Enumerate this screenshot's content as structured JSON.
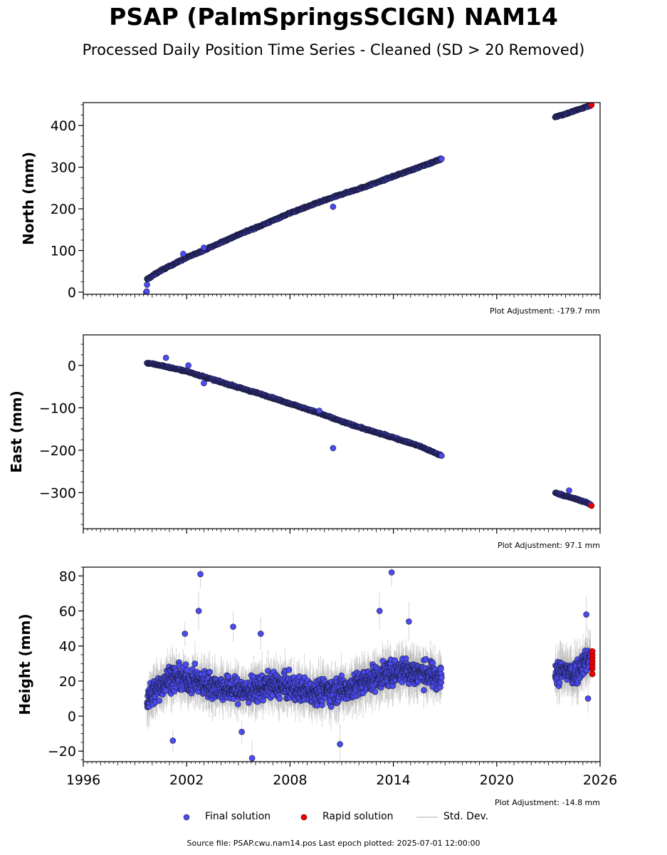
{
  "title": "PSAP (PalmSpringsSCIGN) NAM14",
  "subtitle": "Processed Daily Position Time Series - Cleaned (SD > 20 Removed)",
  "footer": "Source file: PSAP.cwu.nam14.pos  Last epoch plotted: 2025-07-01 12:00:00",
  "legend": {
    "final": "Final solution",
    "rapid": "Rapid solution",
    "std": "Std. Dev."
  },
  "colors": {
    "final": "#4b4bf0",
    "rapid": "#ee0000",
    "std": "#b8b8b8",
    "edge": "#1a1a3a"
  },
  "chart_data": [
    {
      "type": "scatter",
      "ylabel": "North (mm)",
      "adjustment": "Plot Adjustment: -179.7 mm",
      "xlim": [
        1996,
        2026
      ],
      "ylim": [
        -5,
        455
      ],
      "yticks": [
        0,
        100,
        200,
        300,
        400
      ],
      "xticks": [
        1996,
        2002,
        2008,
        2014,
        2020,
        2026
      ],
      "show_xtick_labels": false,
      "series": [
        {
          "name": "Final solution",
          "segments": [
            {
              "x": [
                1999.7,
                2000.5,
                2002.0,
                2003.5,
                2005.0,
                2006.5,
                2008.0,
                2009.5,
                2011.0,
                2012.5,
                2014.0,
                2015.5,
                2016.8
              ],
              "y": [
                31,
                52,
                83,
                110,
                138,
                163,
                190,
                213,
                235,
                255,
                278,
                300,
                320
              ]
            },
            {
              "x": [
                2023.4,
                2024.0,
                2024.5,
                2025.0,
                2025.45
              ],
              "y": [
                421,
                428,
                435,
                442,
                449
              ]
            }
          ],
          "outliers": [
            [
              1999.65,
              0
            ],
            [
              1999.68,
              2
            ],
            [
              1999.7,
              18
            ],
            [
              2010.5,
              205
            ],
            [
              2003.0,
              107
            ],
            [
              2001.8,
              92
            ]
          ]
        },
        {
          "name": "Rapid solution",
          "x": [
            2025.5
          ],
          "y": [
            449
          ]
        }
      ]
    },
    {
      "type": "scatter",
      "ylabel": "East (mm)",
      "adjustment": "Plot Adjustment: 97.1 mm",
      "xlim": [
        1996,
        2026
      ],
      "ylim": [
        -385,
        72
      ],
      "yticks": [
        0,
        -100,
        -200,
        -300
      ],
      "ytick_labels": [
        "0",
        "−100",
        "−200",
        "−300"
      ],
      "xticks": [
        1996,
        2002,
        2008,
        2014,
        2020,
        2026
      ],
      "show_xtick_labels": false,
      "series": [
        {
          "name": "Final solution",
          "segments": [
            {
              "x": [
                1999.7,
                2000.5,
                2002.0,
                2003.5,
                2005.0,
                2006.5,
                2008.0,
                2009.5,
                2011.0,
                2012.5,
                2014.0,
                2015.5,
                2016.8
              ],
              "y": [
                6,
                0,
                -14,
                -33,
                -52,
                -70,
                -90,
                -110,
                -132,
                -152,
                -170,
                -190,
                -213
              ]
            },
            {
              "x": [
                2023.4,
                2024.0,
                2024.5,
                2025.0,
                2025.45
              ],
              "y": [
                -300,
                -308,
                -314,
                -320,
                -328
              ]
            }
          ],
          "outliers": [
            [
              2000.8,
              18
            ],
            [
              2002.1,
              0
            ],
            [
              2010.5,
              -195
            ],
            [
              2003.0,
              -42
            ],
            [
              2009.7,
              -107
            ],
            [
              2024.2,
              -295
            ]
          ]
        },
        {
          "name": "Rapid solution",
          "x": [
            2025.5
          ],
          "y": [
            -331
          ]
        }
      ]
    },
    {
      "type": "scatter",
      "ylabel": "Height (mm)",
      "adjustment": "Plot Adjustment: -14.8 mm",
      "xlim": [
        1996,
        2026
      ],
      "ylim": [
        -26,
        85
      ],
      "yticks": [
        -20,
        0,
        20,
        40,
        60,
        80
      ],
      "ytick_labels": [
        "−20",
        "0",
        "20",
        "40",
        "60",
        "80"
      ],
      "xticks": [
        1996,
        2002,
        2008,
        2014,
        2020,
        2026
      ],
      "xtick_labels": [
        "1996",
        "2002",
        "2008",
        "2014",
        "2020",
        "2026"
      ],
      "show_xtick_labels": true,
      "series": [
        {
          "name": "Final solution",
          "segments": [
            {
              "x": [
                1999.7,
                2001.0,
                2002.5,
                2004.0,
                2005.5,
                2007.0,
                2008.5,
                2010.0,
                2011.5,
                2013.0,
                2014.5,
                2016.0,
                2016.8
              ],
              "y": [
                10,
                22,
                20,
                16,
                14,
                18,
                15,
                14,
                16,
                22,
                26,
                24,
                22
              ]
            },
            {
              "x": [
                2023.4,
                2024.0,
                2024.5,
                2025.0,
                2025.45
              ],
              "y": [
                24,
                26,
                24,
                30,
                34
              ]
            }
          ],
          "spread": 9,
          "outliers": [
            [
              2002.8,
              81
            ],
            [
              2002.7,
              60
            ],
            [
              2013.9,
              82
            ],
            [
              2013.2,
              60
            ],
            [
              2001.2,
              -14
            ],
            [
              2005.8,
              -24
            ],
            [
              2010.9,
              -16
            ],
            [
              2005.2,
              -9
            ],
            [
              2014.9,
              54
            ],
            [
              2025.2,
              58
            ],
            [
              2025.3,
              10
            ],
            [
              2001.9,
              47
            ],
            [
              2006.3,
              47
            ],
            [
              2004.7,
              51
            ]
          ]
        },
        {
          "name": "Rapid solution",
          "x": [
            2025.55,
            2025.55,
            2025.55,
            2025.55,
            2025.55,
            2025.55,
            2025.55
          ],
          "y": [
            24,
            27,
            29,
            31,
            33,
            35,
            37
          ]
        }
      ]
    }
  ]
}
